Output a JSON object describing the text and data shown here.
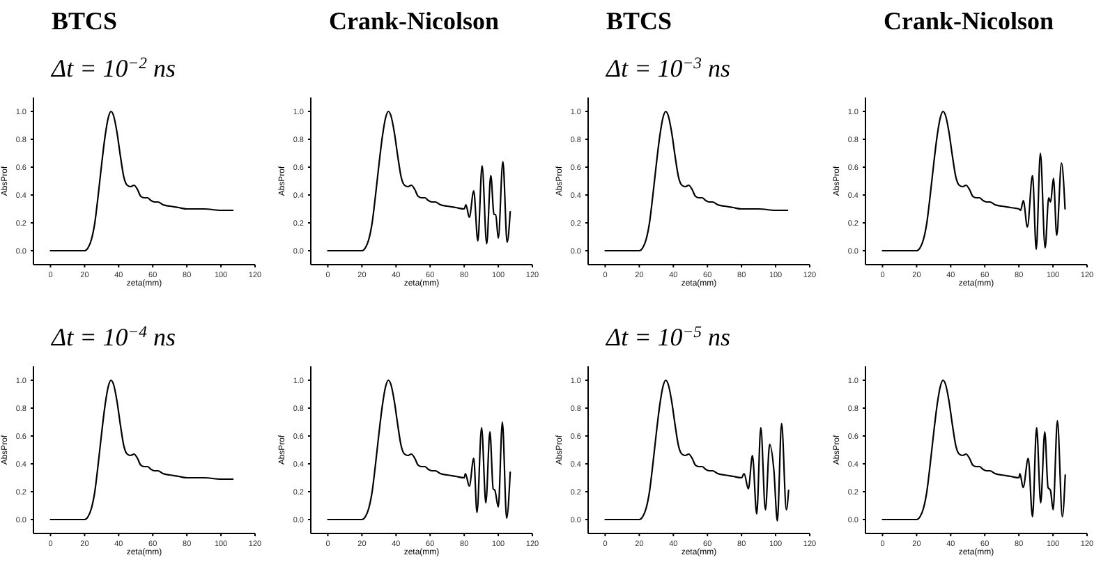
{
  "chart_data": [
    {
      "type": "line",
      "title": "BTCS",
      "subtitle": "Δt = 10$^{−2}$ ns",
      "xlabel": "zeta(mm)",
      "ylabel": "AbsProf",
      "xlim": [
        -10,
        120
      ],
      "ylim": [
        -0.1,
        1.1
      ],
      "xticks": [
        0,
        20,
        40,
        60,
        80,
        100,
        120
      ],
      "yticks": [
        {
          "value": 0,
          "label": "0.0"
        },
        {
          "value": 0.2,
          "label": "0.2"
        },
        {
          "value": 0.4,
          "label": "0.4"
        },
        {
          "value": 0.6,
          "label": "0.6"
        },
        {
          "value": 0.8,
          "label": "0.8"
        },
        {
          "value": 1,
          "label": "1.0"
        }
      ],
      "x": [
        0,
        20,
        22,
        24,
        26,
        28,
        30,
        32,
        34,
        35.5,
        37,
        39,
        41,
        43,
        45,
        47,
        49,
        51,
        53,
        55,
        57,
        59,
        61,
        63,
        66,
        70,
        75,
        80,
        85,
        90,
        100,
        107
      ],
      "series": [
        {
          "color": "#000000",
          "values": [
            0,
            0,
            0.02,
            0.08,
            0.2,
            0.4,
            0.62,
            0.82,
            0.96,
            1.0,
            0.97,
            0.85,
            0.68,
            0.53,
            0.47,
            0.46,
            0.47,
            0.44,
            0.39,
            0.38,
            0.38,
            0.36,
            0.35,
            0.35,
            0.33,
            0.32,
            0.31,
            0.3,
            0.3,
            0.3,
            0.29,
            0.29
          ]
        }
      ]
    },
    {
      "type": "line",
      "title": "Crank-Nicolson",
      "xlabel": "zeta(mm)",
      "ylabel": "AbsProf",
      "xlim": [
        -10,
        120
      ],
      "ylim": [
        -0.1,
        1.1
      ],
      "xticks": [
        0,
        20,
        40,
        60,
        80,
        100,
        120
      ],
      "yticks": [
        {
          "value": 0,
          "label": "0.0"
        },
        {
          "value": 0.2,
          "label": "0.2"
        },
        {
          "value": 0.4,
          "label": "0.4"
        },
        {
          "value": 0.6,
          "label": "0.6"
        },
        {
          "value": 0.8,
          "label": "0.8"
        },
        {
          "value": 1,
          "label": "1.0"
        }
      ],
      "x": [
        0,
        20,
        22,
        24,
        26,
        28,
        30,
        32,
        34,
        35.5,
        37,
        39,
        41,
        43,
        45,
        47,
        49,
        51,
        53,
        55,
        57,
        59,
        61,
        63,
        66,
        70,
        75,
        80,
        81,
        83,
        85.6,
        88,
        90.5,
        93.2,
        95.6,
        97.5,
        98.5,
        100,
        102.7,
        105.2,
        107
      ],
      "series": [
        {
          "color": "#000000",
          "values": [
            0,
            0,
            0.02,
            0.08,
            0.2,
            0.4,
            0.62,
            0.82,
            0.96,
            1.0,
            0.97,
            0.85,
            0.68,
            0.53,
            0.47,
            0.46,
            0.47,
            0.44,
            0.39,
            0.38,
            0.38,
            0.36,
            0.35,
            0.35,
            0.33,
            0.32,
            0.31,
            0.3,
            0.33,
            0.24,
            0.43,
            0.07,
            0.61,
            0.05,
            0.54,
            0.26,
            0.26,
            0.09,
            0.64,
            0.06,
            0.28
          ]
        }
      ]
    },
    {
      "type": "line",
      "title": "BTCS",
      "subtitle": "Δt = 10$^{−3}$ ns",
      "xlabel": "zeta(mm)",
      "ylabel": "AbsProf",
      "xlim": [
        -10,
        120
      ],
      "ylim": [
        -0.1,
        1.1
      ],
      "xticks": [
        0,
        20,
        40,
        60,
        80,
        100,
        120
      ],
      "yticks": [
        {
          "value": 0,
          "label": "0.0"
        },
        {
          "value": 0.2,
          "label": "0.2"
        },
        {
          "value": 0.4,
          "label": "0.4"
        },
        {
          "value": 0.6,
          "label": "0.6"
        },
        {
          "value": 0.8,
          "label": "0.8"
        },
        {
          "value": 1,
          "label": "1.0"
        }
      ],
      "x": [
        0,
        20,
        22,
        24,
        26,
        28,
        30,
        32,
        34,
        35.5,
        37,
        39,
        41,
        43,
        45,
        47,
        49,
        51,
        53,
        55,
        57,
        59,
        61,
        63,
        66,
        70,
        75,
        80,
        85,
        90,
        100,
        107
      ],
      "series": [
        {
          "color": "#000000",
          "values": [
            0,
            0,
            0.02,
            0.08,
            0.2,
            0.4,
            0.62,
            0.82,
            0.96,
            1.0,
            0.97,
            0.85,
            0.68,
            0.53,
            0.47,
            0.46,
            0.47,
            0.44,
            0.39,
            0.38,
            0.38,
            0.36,
            0.35,
            0.35,
            0.33,
            0.32,
            0.31,
            0.3,
            0.3,
            0.3,
            0.29,
            0.29
          ]
        }
      ]
    },
    {
      "type": "line",
      "title": "Crank-Nicolson",
      "xlabel": "zeta(mm)",
      "ylabel": "AbsProf",
      "xlim": [
        -10,
        120
      ],
      "ylim": [
        -0.1,
        1.1
      ],
      "xticks": [
        0,
        20,
        40,
        60,
        80,
        100,
        120
      ],
      "yticks": [
        {
          "value": 0,
          "label": "0.0"
        },
        {
          "value": 0.2,
          "label": "0.2"
        },
        {
          "value": 0.4,
          "label": "0.4"
        },
        {
          "value": 0.6,
          "label": "0.6"
        },
        {
          "value": 0.8,
          "label": "0.8"
        },
        {
          "value": 1,
          "label": "1.0"
        }
      ],
      "x": [
        0,
        20,
        22,
        24,
        26,
        28,
        30,
        32,
        34,
        35.5,
        37,
        39,
        41,
        43,
        45,
        47,
        49,
        51,
        53,
        55,
        57,
        59,
        61,
        63,
        66,
        70,
        75,
        80,
        81,
        82.6,
        85,
        88,
        90.2,
        92.6,
        95.4,
        97.5,
        98.6,
        100.3,
        102.2,
        105,
        107.1
      ],
      "series": [
        {
          "color": "#000000",
          "values": [
            0,
            0,
            0.02,
            0.08,
            0.2,
            0.4,
            0.62,
            0.82,
            0.96,
            1.0,
            0.97,
            0.85,
            0.68,
            0.53,
            0.47,
            0.46,
            0.47,
            0.44,
            0.39,
            0.38,
            0.38,
            0.36,
            0.35,
            0.35,
            0.33,
            0.32,
            0.31,
            0.3,
            0.29,
            0.36,
            0.17,
            0.54,
            0.01,
            0.7,
            0.02,
            0.38,
            0.35,
            0.52,
            0.11,
            0.63,
            0.3
          ]
        }
      ]
    },
    {
      "type": "line",
      "subtitle": "Δt = 10$^{−4}$ ns",
      "xlabel": "zeta(mm)",
      "ylabel": "AbsProf",
      "xlim": [
        -10,
        120
      ],
      "ylim": [
        -0.1,
        1.1
      ],
      "xticks": [
        0,
        20,
        40,
        60,
        80,
        100,
        120
      ],
      "yticks": [
        {
          "value": 0,
          "label": "0.0"
        },
        {
          "value": 0.2,
          "label": "0.2"
        },
        {
          "value": 0.4,
          "label": "0.4"
        },
        {
          "value": 0.6,
          "label": "0.6"
        },
        {
          "value": 0.8,
          "label": "0.8"
        },
        {
          "value": 1,
          "label": "1.0"
        }
      ],
      "x": [
        0,
        20,
        22,
        24,
        26,
        28,
        30,
        32,
        34,
        35.5,
        37,
        39,
        41,
        43,
        45,
        47,
        49,
        51,
        53,
        55,
        57,
        59,
        61,
        63,
        66,
        70,
        75,
        80,
        85,
        90,
        100,
        107
      ],
      "series": [
        {
          "color": "#000000",
          "values": [
            0,
            0,
            0.02,
            0.08,
            0.2,
            0.4,
            0.62,
            0.82,
            0.96,
            1.0,
            0.97,
            0.85,
            0.68,
            0.53,
            0.47,
            0.46,
            0.47,
            0.44,
            0.39,
            0.38,
            0.38,
            0.36,
            0.35,
            0.35,
            0.33,
            0.32,
            0.31,
            0.3,
            0.3,
            0.3,
            0.29,
            0.29
          ]
        }
      ]
    },
    {
      "type": "line",
      "xlabel": "zeta(mm)",
      "ylabel": "AbsProf",
      "xlim": [
        -10,
        120
      ],
      "ylim": [
        -0.1,
        1.1
      ],
      "xticks": [
        0,
        20,
        40,
        60,
        80,
        100,
        120
      ],
      "yticks": [
        {
          "value": 0,
          "label": "0.0"
        },
        {
          "value": 0.2,
          "label": "0.2"
        },
        {
          "value": 0.4,
          "label": "0.4"
        },
        {
          "value": 0.6,
          "label": "0.6"
        },
        {
          "value": 0.8,
          "label": "0.8"
        },
        {
          "value": 1,
          "label": "1.0"
        }
      ],
      "x": [
        0,
        20,
        22,
        24,
        26,
        28,
        30,
        32,
        34,
        35.5,
        37,
        39,
        41,
        43,
        45,
        47,
        49,
        51,
        53,
        55,
        57,
        59,
        61,
        63,
        66,
        70,
        75,
        80,
        80.7,
        83,
        85.6,
        87.5,
        90.2,
        92.7,
        95.1,
        97,
        98,
        100,
        102.4,
        104.9,
        107
      ],
      "series": [
        {
          "color": "#000000",
          "values": [
            0,
            0,
            0.02,
            0.08,
            0.2,
            0.4,
            0.62,
            0.82,
            0.96,
            1.0,
            0.97,
            0.85,
            0.68,
            0.53,
            0.47,
            0.46,
            0.47,
            0.44,
            0.39,
            0.38,
            0.38,
            0.36,
            0.35,
            0.35,
            0.33,
            0.32,
            0.31,
            0.3,
            0.33,
            0.24,
            0.44,
            0.05,
            0.66,
            0.12,
            0.63,
            0.22,
            0.21,
            0.09,
            0.7,
            0.01,
            0.34
          ]
        }
      ]
    },
    {
      "type": "line",
      "subtitle": "Δt = 10$^{−5}$ ns",
      "xlabel": "zeta(mm)",
      "ylabel": "AbsProf",
      "xlim": [
        -10,
        120
      ],
      "ylim": [
        -0.1,
        1.1
      ],
      "xticks": [
        0,
        20,
        40,
        60,
        80,
        100,
        120
      ],
      "yticks": [
        {
          "value": 0,
          "label": "0.0"
        },
        {
          "value": 0.2,
          "label": "0.2"
        },
        {
          "value": 0.4,
          "label": "0.4"
        },
        {
          "value": 0.6,
          "label": "0.6"
        },
        {
          "value": 0.8,
          "label": "0.8"
        },
        {
          "value": 1,
          "label": "1.0"
        }
      ],
      "x": [
        0,
        20,
        22,
        24,
        26,
        28,
        30,
        32,
        34,
        35.5,
        37,
        39,
        41,
        43,
        45,
        47,
        49,
        51,
        53,
        55,
        57,
        59,
        61,
        63,
        66,
        70,
        75,
        80,
        81.5,
        84,
        86.4,
        88.9,
        91.3,
        94,
        96.5,
        99,
        101,
        103.5,
        106.3,
        107.6
      ],
      "series": [
        {
          "color": "#000000",
          "values": [
            0,
            0,
            0.02,
            0.08,
            0.2,
            0.4,
            0.62,
            0.82,
            0.96,
            1.0,
            0.97,
            0.85,
            0.68,
            0.53,
            0.47,
            0.46,
            0.47,
            0.44,
            0.39,
            0.38,
            0.38,
            0.36,
            0.35,
            0.35,
            0.33,
            0.32,
            0.31,
            0.3,
            0.33,
            0.22,
            0.46,
            0.04,
            0.66,
            0.07,
            0.54,
            0.35,
            -0.01,
            0.69,
            0.07,
            0.21
          ]
        }
      ]
    },
    {
      "type": "line",
      "xlabel": "zeta(mm)",
      "ylabel": "AbsProf",
      "xlim": [
        -10,
        120
      ],
      "ylim": [
        -0.1,
        1.1
      ],
      "xticks": [
        0,
        20,
        40,
        60,
        80,
        100,
        120
      ],
      "yticks": [
        {
          "value": 0,
          "label": "0.0"
        },
        {
          "value": 0.2,
          "label": "0.2"
        },
        {
          "value": 0.4,
          "label": "0.4"
        },
        {
          "value": 0.6,
          "label": "0.6"
        },
        {
          "value": 0.8,
          "label": "0.8"
        },
        {
          "value": 1,
          "label": "1.0"
        }
      ],
      "x": [
        0,
        20,
        22,
        24,
        26,
        28,
        30,
        32,
        34,
        35.5,
        37,
        39,
        41,
        43,
        45,
        47,
        49,
        51,
        53,
        55,
        57,
        59,
        61,
        63,
        66,
        70,
        75,
        80,
        80.6,
        82.5,
        85.5,
        88,
        90.4,
        92.8,
        95.2,
        97.1,
        98.5,
        100.1,
        102.6,
        105.5,
        107.2
      ],
      "series": [
        {
          "color": "#000000",
          "values": [
            0,
            0,
            0.02,
            0.08,
            0.2,
            0.4,
            0.62,
            0.82,
            0.96,
            1.0,
            0.97,
            0.85,
            0.68,
            0.53,
            0.47,
            0.46,
            0.47,
            0.44,
            0.39,
            0.38,
            0.38,
            0.36,
            0.35,
            0.35,
            0.33,
            0.32,
            0.31,
            0.3,
            0.33,
            0.23,
            0.44,
            0.02,
            0.66,
            0.12,
            0.63,
            0.23,
            0.21,
            0.07,
            0.71,
            0.02,
            0.32
          ]
        }
      ]
    }
  ]
}
